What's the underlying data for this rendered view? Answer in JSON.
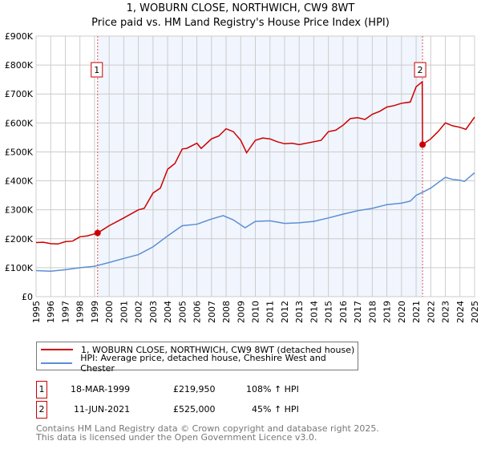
{
  "title": "1, WOBURN CLOSE, NORTHWICH, CW9 8WT",
  "subtitle": "Price paid vs. HM Land Registry's House Price Index (HPI)",
  "chart_data": {
    "type": "line",
    "title": "1, WOBURN CLOSE, NORTHWICH, CW9 8WT",
    "xlim": [
      1995,
      2025
    ],
    "ylim": [
      0,
      900000
    ],
    "grid": true,
    "y_ticks": [
      "£0",
      "£100K",
      "£200K",
      "£300K",
      "£400K",
      "£500K",
      "£600K",
      "£700K",
      "£800K",
      "£900K"
    ],
    "x_ticks": [
      "1995",
      "1996",
      "1997",
      "1998",
      "1999",
      "2000",
      "2001",
      "2002",
      "2003",
      "2004",
      "2005",
      "2006",
      "2007",
      "2008",
      "2009",
      "2010",
      "2011",
      "2012",
      "2013",
      "2014",
      "2015",
      "2016",
      "2017",
      "2018",
      "2019",
      "2020",
      "2021",
      "2022",
      "2023",
      "2024",
      "2025"
    ],
    "shaded_range": [
      1999.21,
      2021.44
    ],
    "series": [
      {
        "name": "1, WOBURN CLOSE, NORTHWICH, CW9 8WT (detached house)",
        "color": "#cc0000",
        "x": [
          1995,
          1995.5,
          1996,
          1996.5,
          1997,
          1997.5,
          1998,
          1998.5,
          1999.21,
          2000,
          2001,
          2002,
          2002.4,
          2003,
          2003.5,
          2004,
          2004.5,
          2005,
          2005.3,
          2006,
          2006.3,
          2007,
          2007.5,
          2008,
          2008.5,
          2009,
          2009.4,
          2010,
          2010.5,
          2011,
          2011.5,
          2012,
          2012.5,
          2013,
          2014,
          2014.5,
          2015,
          2015.5,
          2016,
          2016.5,
          2017,
          2017.5,
          2018,
          2018.5,
          2019,
          2019.5,
          2020,
          2020.6,
          2021,
          2021.42,
          2021.44,
          2022,
          2022.5,
          2023,
          2023.5,
          2024,
          2024.4,
          2025
        ],
        "y": [
          187000,
          188000,
          183000,
          182000,
          190000,
          192000,
          207000,
          210000,
          219950,
          245000,
          272000,
          300000,
          305000,
          358000,
          375000,
          440000,
          460000,
          510000,
          512000,
          530000,
          512000,
          545000,
          555000,
          580000,
          570000,
          540000,
          497000,
          540000,
          548000,
          545000,
          535000,
          528000,
          530000,
          525000,
          535000,
          540000,
          570000,
          575000,
          592000,
          615000,
          618000,
          612000,
          630000,
          640000,
          655000,
          660000,
          668000,
          672000,
          725000,
          742000,
          525000,
          545000,
          570000,
          600000,
          590000,
          585000,
          578000,
          620000
        ]
      },
      {
        "name": "HPI: Average price, detached house, Cheshire West and Chester",
        "color": "#5b8fd4",
        "x": [
          1995,
          1996,
          1997,
          1998,
          1999,
          2000,
          2001,
          2002,
          2003,
          2004,
          2005,
          2006,
          2007,
          2007.8,
          2008.5,
          2009.3,
          2010,
          2011,
          2012,
          2013,
          2014,
          2015,
          2016,
          2017,
          2018,
          2019,
          2020,
          2020.6,
          2021,
          2021.5,
          2022,
          2023,
          2023.5,
          2024,
          2024.3,
          2025
        ],
        "y": [
          90000,
          88000,
          93000,
          100000,
          105000,
          118000,
          132000,
          145000,
          172000,
          210000,
          245000,
          250000,
          268000,
          280000,
          265000,
          238000,
          260000,
          262000,
          253000,
          255000,
          260000,
          272000,
          285000,
          297000,
          305000,
          318000,
          323000,
          330000,
          350000,
          362000,
          375000,
          412000,
          405000,
          402000,
          398000,
          428000
        ]
      }
    ],
    "annotations": [
      {
        "label": "1",
        "x": 1999.21,
        "y": 219950
      },
      {
        "label": "2",
        "x": 2021.44,
        "y": 525000
      }
    ]
  },
  "legend": {
    "red": "1, WOBURN CLOSE, NORTHWICH, CW9 8WT (detached house)",
    "blue": "HPI: Average price, detached house, Cheshire West and Chester"
  },
  "sales": [
    {
      "num": "1",
      "date": "18-MAR-1999",
      "price": "£219,950",
      "hpi": "108% ↑ HPI"
    },
    {
      "num": "2",
      "date": "11-JUN-2021",
      "price": "£525,000",
      "hpi": "45% ↑ HPI"
    }
  ],
  "footer": {
    "line1": "Contains HM Land Registry data © Crown copyright and database right 2025.",
    "line2": "This data is licensed under the Open Government Licence v3.0."
  }
}
